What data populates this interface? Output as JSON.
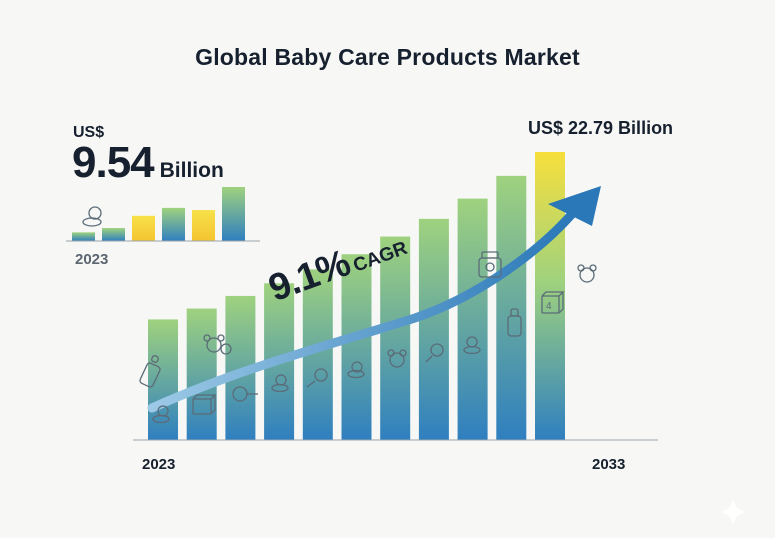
{
  "chart_data": {
    "type": "bar",
    "title": "Global Baby Care Products Market",
    "inset": {
      "currency": "US$",
      "value": "9.54",
      "unit": "Billion",
      "year": "2023",
      "values": [
        1.2,
        1.8,
        3.5,
        4.6,
        4.3,
        7.5
      ]
    },
    "main": {
      "x_start_label": "2023",
      "x_end_label": "2033",
      "end_value_label": "US$ 22.79 Billion",
      "values": [
        9.54,
        10.4,
        11.4,
        12.4,
        13.5,
        14.7,
        16.1,
        17.5,
        19.1,
        20.9,
        22.79
      ],
      "ylim": [
        0,
        23.5
      ]
    },
    "cagr": {
      "value": "9.1%",
      "label": "CAGR"
    },
    "colors": {
      "bar_top_green": "#9fd27e",
      "bar_bottom_blue": "#2f7fc0",
      "bar_top_yellow": "#f7df3c",
      "arrow": "#2f7fc0"
    },
    "icons": [
      "pacifier-icon",
      "baby-bottle-icon",
      "rattle-icon",
      "building-block-icon",
      "baby-food-jar-icon",
      "teddy-bear-icon"
    ]
  }
}
